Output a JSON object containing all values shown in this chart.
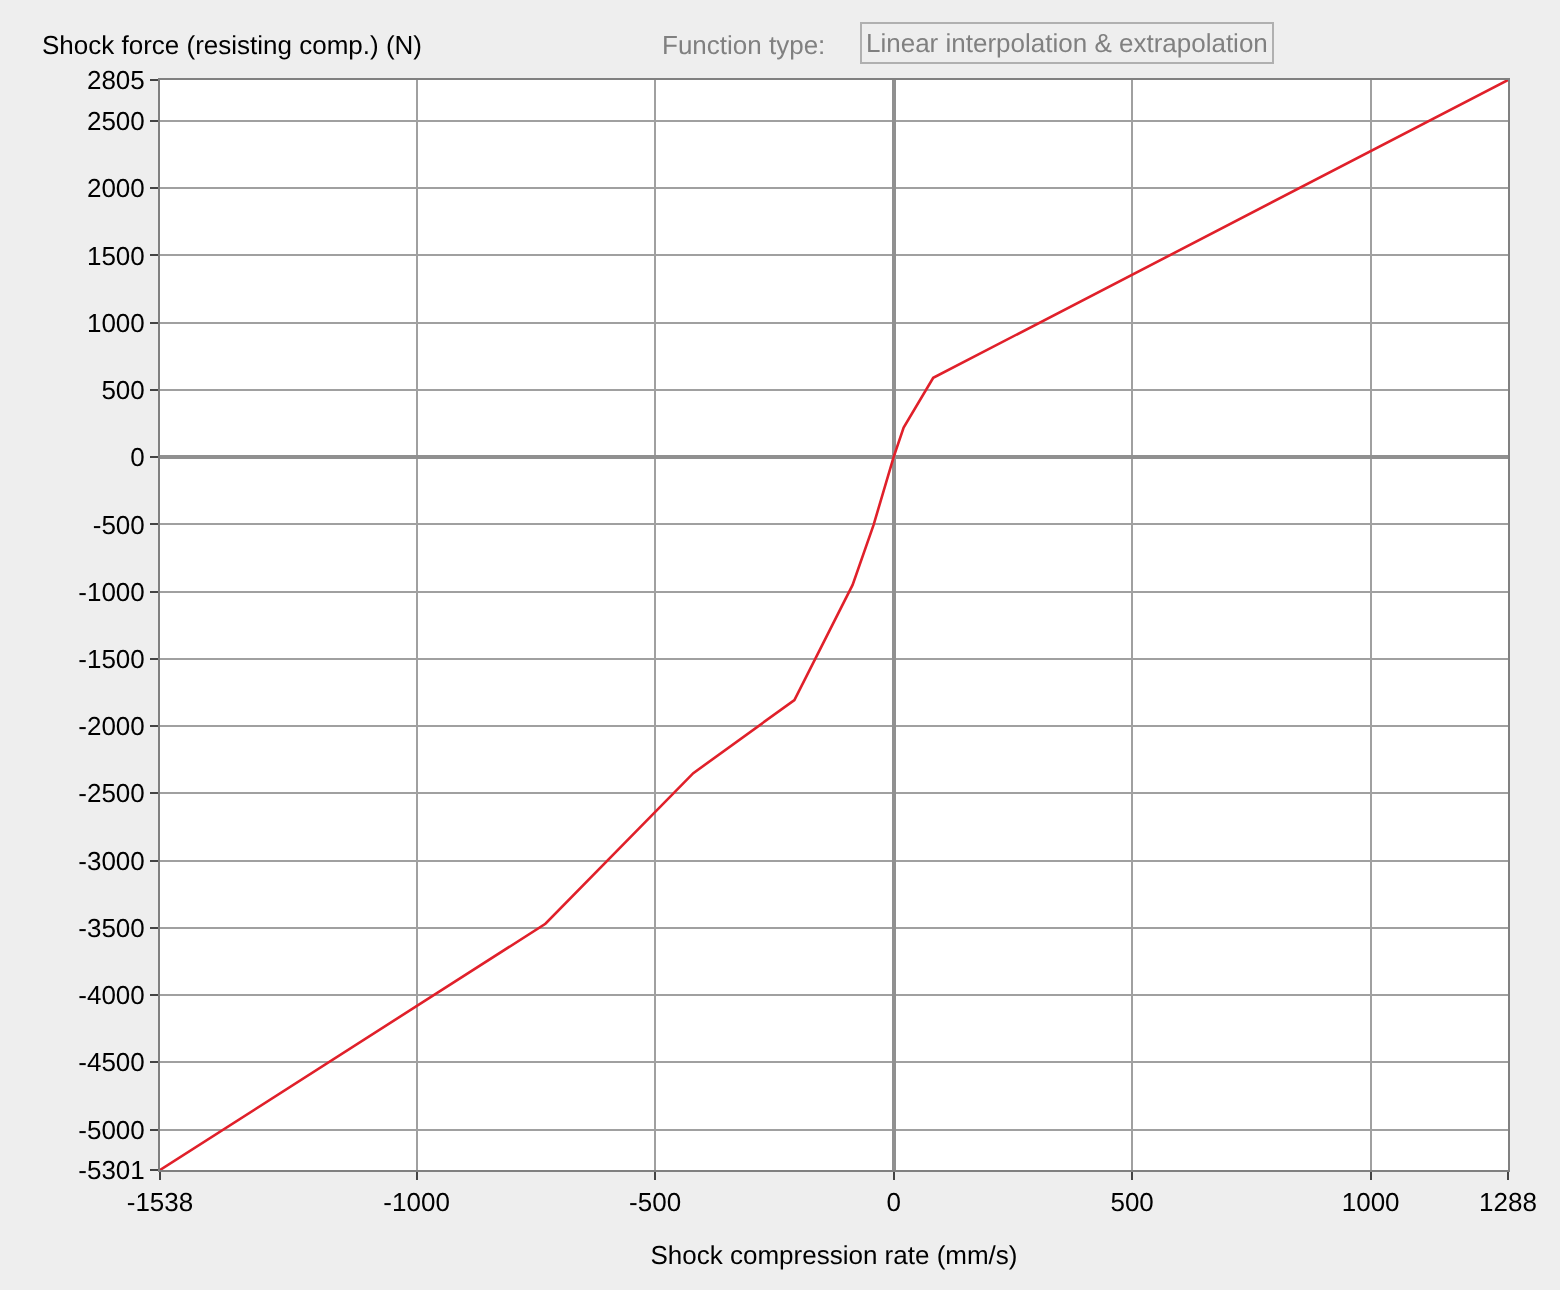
{
  "chart_data": {
    "type": "line",
    "ylabel": "Shock force (resisting comp.) (N)",
    "xlabel": "Shock compression rate (mm/s)",
    "annotations": [
      "Function type:",
      "Linear interpolation & extrapolation"
    ],
    "series": [
      {
        "color": "#e0202a",
        "x": [
          -1538,
          -730,
          -420,
          -208,
          -86,
          -42,
          0,
          21,
          83,
          1288
        ],
        "values": [
          -5301,
          -3470,
          -2350,
          -1806,
          -950,
          -503,
          0,
          220,
          590,
          2805
        ]
      }
    ],
    "xlim": [
      -1538,
      1288
    ],
    "xticks": [
      -1538,
      -1000,
      -500,
      0,
      500,
      1000,
      1288
    ],
    "ylim": [
      -5301,
      2805
    ],
    "yticks": [
      -5301,
      -5000,
      -4500,
      -4000,
      -3500,
      -3000,
      -2500,
      -2000,
      -1500,
      -1000,
      -500,
      0,
      500,
      1000,
      1500,
      2000,
      2500,
      2805
    ],
    "grid": true,
    "marker": "none",
    "line_style": "solid"
  }
}
